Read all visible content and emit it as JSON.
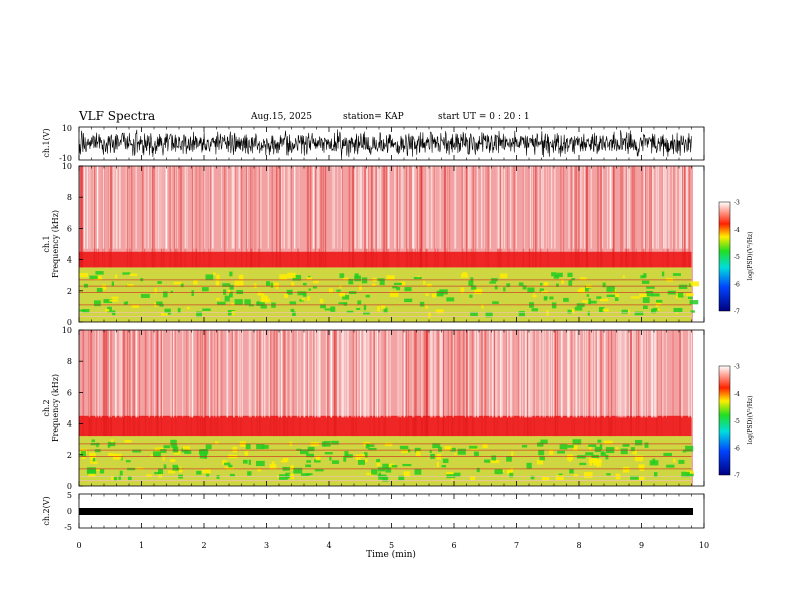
{
  "header": {
    "title": "VLF Spectra",
    "date": "Aug.15, 2025",
    "station": "station= KAP",
    "start": "start  UT =   0 : 20 : 1"
  },
  "chart_data": [
    {
      "type": "line",
      "panel": "ch1-waveform",
      "ylabel": "ch.1(V)",
      "ylim": [
        -10,
        10
      ],
      "yticks": [
        "10",
        "-10"
      ],
      "x_extent_min": 9.8
    },
    {
      "type": "heatmap",
      "panel": "ch1-spectrogram",
      "ylabel": "Frequency (kHz)",
      "ylabel_prefix": "ch.1",
      "ylim": [
        0,
        10
      ],
      "yticks": [
        "0",
        "2",
        "4",
        "6",
        "8",
        "10"
      ],
      "bands": [
        {
          "from_khz": 0,
          "to_khz": 3.5,
          "level": "green-yellow"
        },
        {
          "from_khz": 3.5,
          "to_khz": 4.5,
          "level": "red"
        },
        {
          "from_khz": 4.5,
          "to_khz": 10,
          "level": "light-red"
        }
      ],
      "colorbar": {
        "label": "log(PSD)(V²/Hz)",
        "min": -7,
        "max": -3,
        "ticks": [
          "-3",
          "-4",
          "-5",
          "-6",
          "-7"
        ]
      }
    },
    {
      "type": "heatmap",
      "panel": "ch2-spectrogram",
      "ylabel": "Frequency (kHz)",
      "ylabel_prefix": "ch.2",
      "ylim": [
        0,
        10
      ],
      "yticks": [
        "0",
        "2",
        "4",
        "6",
        "8",
        "10"
      ],
      "bands": [
        {
          "from_khz": 0,
          "to_khz": 3.2,
          "level": "green-yellow"
        },
        {
          "from_khz": 3.2,
          "to_khz": 4.5,
          "level": "red"
        },
        {
          "from_khz": 4.5,
          "to_khz": 10,
          "level": "light-red"
        }
      ],
      "colorbar": {
        "label": "log(PSD)(V²/Hz)",
        "min": -7,
        "max": -3,
        "ticks": [
          "-3",
          "-4",
          "-5",
          "-6",
          "-7"
        ]
      }
    },
    {
      "type": "line",
      "panel": "ch2-waveform",
      "ylabel": "ch.2(V)",
      "ylim": [
        -5,
        5
      ],
      "yticks": [
        "5",
        "0",
        "-5"
      ],
      "xlabel": "Time (min)",
      "xlim": [
        0,
        10
      ],
      "xticks": [
        "0",
        "1",
        "2",
        "3",
        "4",
        "5",
        "6",
        "7",
        "8",
        "9",
        "10"
      ]
    }
  ],
  "palette": {
    "low": "#1a1a8c",
    "mid": "#22cc22",
    "high": "#ffee00",
    "red": "#ee1111",
    "pale": "#f6b0b0"
  }
}
